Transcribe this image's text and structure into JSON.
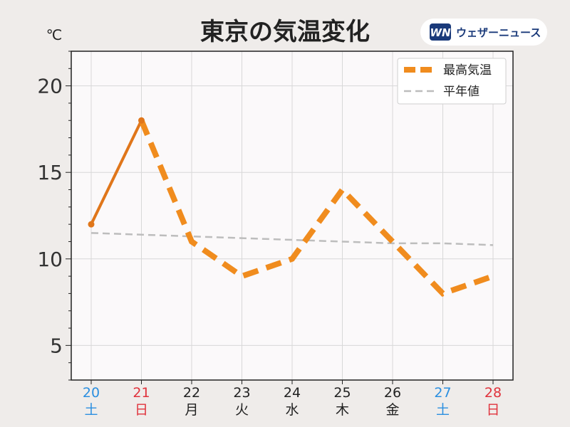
{
  "title": "東京の気温変化",
  "unit": "℃",
  "logo": {
    "mark": "WN",
    "text": "ウェザーニュース"
  },
  "colors": {
    "background": "#efecea",
    "plot_bg": "#fbf9fa",
    "actual_line": "#e0761a",
    "forecast_line": "#f08c1e",
    "normal_line": "#bdbdbd",
    "grid": "#d8d8d8",
    "saturday": "#2b8fe0",
    "sunday": "#e0323c",
    "weekday": "#222222",
    "logo_blue": "#1a3a7a"
  },
  "chart_data": {
    "type": "line",
    "title": "東京の気温変化",
    "ylabel": "℃",
    "ylim": [
      3,
      22
    ],
    "yticks": [
      5,
      10,
      15,
      20
    ],
    "grid": true,
    "legend_position": "top-right",
    "categories": [
      {
        "date": "20",
        "weekday": "土",
        "day_type": "saturday"
      },
      {
        "date": "21",
        "weekday": "日",
        "day_type": "sunday"
      },
      {
        "date": "22",
        "weekday": "月",
        "day_type": "weekday"
      },
      {
        "date": "23",
        "weekday": "火",
        "day_type": "weekday"
      },
      {
        "date": "24",
        "weekday": "水",
        "day_type": "weekday"
      },
      {
        "date": "25",
        "weekday": "木",
        "day_type": "weekday"
      },
      {
        "date": "26",
        "weekday": "金",
        "day_type": "weekday"
      },
      {
        "date": "27",
        "weekday": "土",
        "day_type": "saturday"
      },
      {
        "date": "28",
        "weekday": "日",
        "day_type": "sunday"
      }
    ],
    "series": [
      {
        "name": "最高気温",
        "values": [
          12,
          18,
          11,
          9,
          10,
          14,
          11,
          8,
          9
        ],
        "observed_through_index": 1
      },
      {
        "name": "平年値",
        "values": [
          11.5,
          11.4,
          11.3,
          11.2,
          11.1,
          11.0,
          10.9,
          10.9,
          10.8
        ]
      }
    ]
  }
}
